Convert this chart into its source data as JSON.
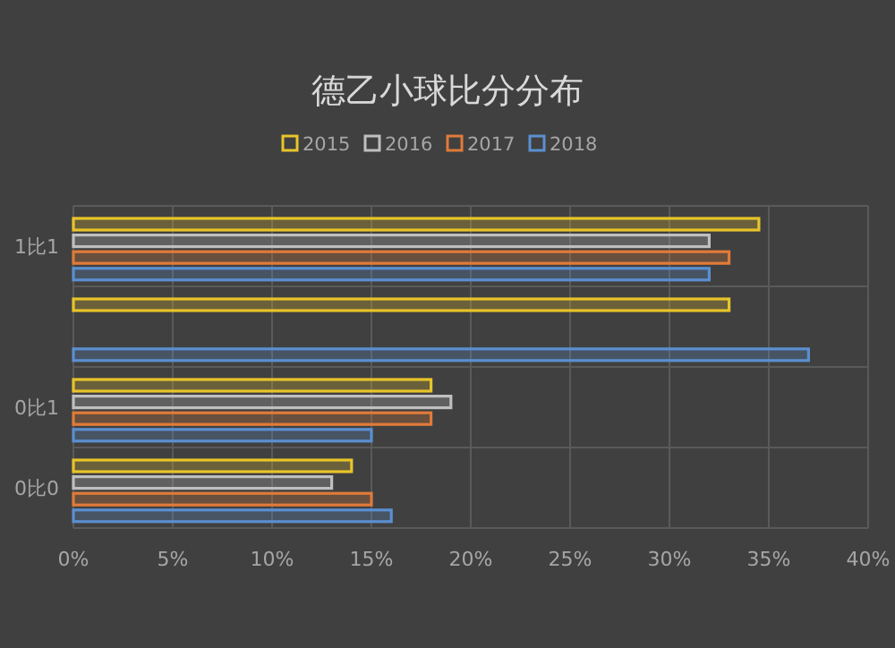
{
  "chart_data": {
    "type": "bar",
    "orientation": "horizontal",
    "title": "德乙小球比分分布",
    "categories": [
      "1比1",
      null,
      "0比1",
      "0比0"
    ],
    "series": [
      {
        "name": "2015",
        "color": "#e8c42a",
        "values": [
          34.5,
          33,
          18,
          14
        ]
      },
      {
        "name": "2016",
        "color": "#bfbfbf",
        "values": [
          32,
          null,
          19,
          13
        ]
      },
      {
        "name": "2017",
        "color": "#e07b39",
        "values": [
          33,
          null,
          18,
          15
        ]
      },
      {
        "name": "2018",
        "color": "#5b8fd0",
        "values": [
          32,
          37,
          15,
          16
        ]
      }
    ],
    "xlim": [
      0,
      40
    ],
    "xticks": [
      {
        "value": 0,
        "label": "0%"
      },
      {
        "value": 5,
        "label": "5%"
      },
      {
        "value": 10,
        "label": "10%"
      },
      {
        "value": 15,
        "label": "15%"
      },
      {
        "value": 20,
        "label": "20%"
      },
      {
        "value": 25,
        "label": "25%"
      },
      {
        "value": 30,
        "label": "30%"
      },
      {
        "value": 35,
        "label": "35%"
      },
      {
        "value": 40,
        "label": "40%"
      }
    ],
    "grid": true,
    "legend": "top"
  }
}
